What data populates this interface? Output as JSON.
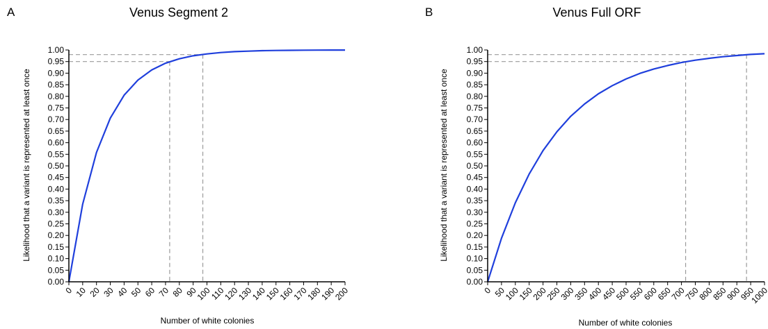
{
  "chart_data": [
    {
      "type": "line",
      "panel_letter": "A",
      "title": "Venus Segment 2",
      "xlabel": "Number of white colonies",
      "ylabel": "Likelihood that  a variant is represented  at least once",
      "xlim": [
        0,
        200
      ],
      "ylim": [
        0,
        1.0
      ],
      "xticks": [
        "0",
        "10",
        "20",
        "30",
        "40",
        "50",
        "60",
        "70",
        "80",
        "90",
        "100",
        "110",
        "120",
        "130",
        "140",
        "150",
        "160",
        "170",
        "180",
        "190",
        "200"
      ],
      "yticks": [
        "0.00",
        "0.05",
        "0.10",
        "0.15",
        "0.20",
        "0.25",
        "0.30",
        "0.35",
        "0.40",
        "0.45",
        "0.50",
        "0.55",
        "0.60",
        "0.65",
        "0.70",
        "0.75",
        "0.80",
        "0.85",
        "0.90",
        "0.95",
        "1.00"
      ],
      "series": [
        {
          "color": "#1f3fdc",
          "x": [
            0,
            10,
            20,
            30,
            40,
            50,
            60,
            70,
            80,
            90,
            100,
            110,
            120,
            130,
            140,
            150,
            160,
            170,
            180,
            190,
            200
          ],
          "y": [
            0.0,
            0.335,
            0.558,
            0.706,
            0.805,
            0.87,
            0.914,
            0.943,
            0.962,
            0.975,
            0.983,
            0.989,
            0.993,
            0.995,
            0.997,
            0.998,
            0.9986,
            0.9991,
            0.9994,
            0.9996,
            0.9997
          ]
        }
      ],
      "reference_lines": [
        {
          "y": 0.95,
          "x": 73
        },
        {
          "y": 0.98,
          "x": 97
        }
      ],
      "grid": false
    },
    {
      "type": "line",
      "panel_letter": "B",
      "title": "Venus Full ORF",
      "xlabel": "Number of white colonies",
      "ylabel": "Likelihood that  a variant is represented at least once",
      "xlim": [
        0,
        1000
      ],
      "ylim": [
        0,
        1.0
      ],
      "xticks": [
        "0",
        "50",
        "100",
        "150",
        "200",
        "250",
        "300",
        "350",
        "400",
        "450",
        "500",
        "550",
        "600",
        "650",
        "700",
        "750",
        "800",
        "850",
        "900",
        "950",
        "1000"
      ],
      "yticks": [
        "0.00",
        "0.05",
        "0.10",
        "0.15",
        "0.20",
        "0.25",
        "0.30",
        "0.35",
        "0.40",
        "0.45",
        "0.50",
        "0.55",
        "0.60",
        "0.65",
        "0.70",
        "0.75",
        "0.80",
        "0.85",
        "0.90",
        "0.95",
        "1.00"
      ],
      "series": [
        {
          "color": "#1f3fdc",
          "x": [
            0,
            50,
            100,
            150,
            200,
            250,
            300,
            350,
            400,
            450,
            500,
            550,
            600,
            650,
            700,
            750,
            800,
            850,
            900,
            950,
            1000
          ],
          "y": [
            0.0,
            0.188,
            0.341,
            0.465,
            0.566,
            0.647,
            0.714,
            0.767,
            0.811,
            0.846,
            0.875,
            0.899,
            0.918,
            0.933,
            0.946,
            0.956,
            0.964,
            0.971,
            0.976,
            0.981,
            0.984
          ]
        }
      ],
      "reference_lines": [
        {
          "y": 0.95,
          "x": 715
        },
        {
          "y": 0.98,
          "x": 935
        }
      ],
      "grid": false
    }
  ]
}
